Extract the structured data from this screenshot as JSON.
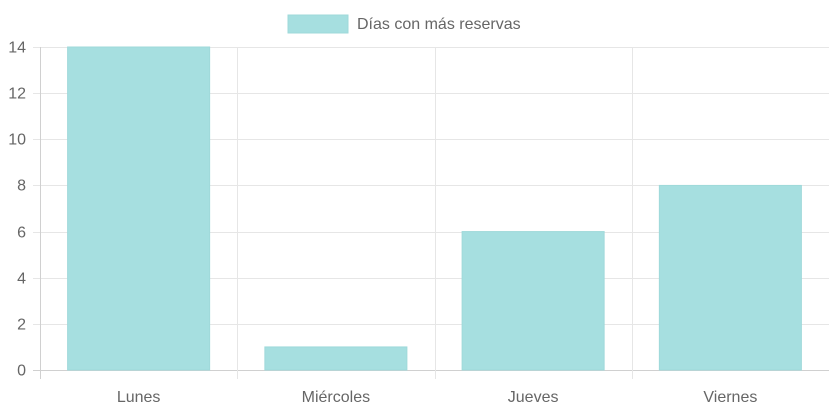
{
  "chart_data": {
    "type": "bar",
    "categories": [
      "Lunes",
      "Miércoles",
      "Jueves",
      "Viernes"
    ],
    "series": [
      {
        "name": "Días con más reservas",
        "values": [
          14,
          1,
          6,
          8
        ]
      }
    ],
    "ylim": [
      0,
      14
    ],
    "yticks": [
      "0",
      "2",
      "4",
      "6",
      "8",
      "10",
      "12",
      "14"
    ],
    "grid": true,
    "legend_position": "top-center",
    "bar_color": "#a6dfe0",
    "bar_border_color": "#9fd9da"
  }
}
